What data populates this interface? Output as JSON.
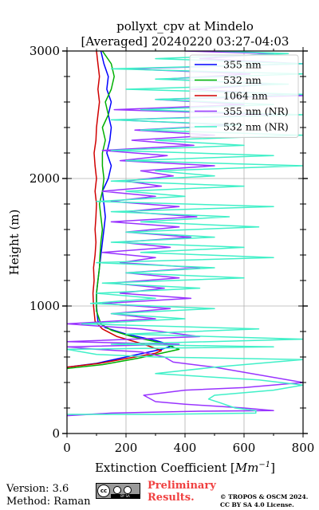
{
  "chart_data": {
    "type": "line",
    "title_line1": "pollyxt_cpv at Mindelo",
    "title_line2": "[Averaged] 20240220 03:27-04:03",
    "xlabel": "Extinction Coefficient [Mm⁻¹]",
    "xlabel_text": "Extinction Coefficient [",
    "xlabel_unit": "Mm",
    "xlabel_exp": "−1",
    "xlabel_close": "]",
    "ylabel": "Height (m)",
    "xlim": [
      0,
      800
    ],
    "ylim": [
      0,
      3000
    ],
    "xticks": [
      0,
      200,
      400,
      600,
      800
    ],
    "yticks": [
      0,
      1000,
      2000,
      3000
    ],
    "grid": true,
    "legend_position": "upper-right",
    "series": [
      {
        "name": "355 nm",
        "color": "#0000ff",
        "points": [
          [
            0,
            520
          ],
          [
            100,
            550
          ],
          [
            220,
            610
          ],
          [
            320,
            660
          ],
          [
            360,
            690
          ],
          [
            300,
            730
          ],
          [
            200,
            780
          ],
          [
            130,
            830
          ],
          [
            105,
            880
          ],
          [
            100,
            1000
          ],
          [
            100,
            1100
          ],
          [
            105,
            1200
          ],
          [
            110,
            1300
          ],
          [
            115,
            1400
          ],
          [
            120,
            1500
          ],
          [
            125,
            1600
          ],
          [
            130,
            1700
          ],
          [
            125,
            1800
          ],
          [
            120,
            1900
          ],
          [
            140,
            2000
          ],
          [
            150,
            2100
          ],
          [
            135,
            2200
          ],
          [
            145,
            2300
          ],
          [
            150,
            2400
          ],
          [
            140,
            2500
          ],
          [
            150,
            2600
          ],
          [
            135,
            2700
          ],
          [
            140,
            2800
          ],
          [
            125,
            2900
          ],
          [
            115,
            3000
          ]
        ]
      },
      {
        "name": "532 nm",
        "color": "#00b000",
        "points": [
          [
            0,
            510
          ],
          [
            120,
            540
          ],
          [
            240,
            590
          ],
          [
            340,
            640
          ],
          [
            380,
            660
          ],
          [
            320,
            710
          ],
          [
            220,
            760
          ],
          [
            150,
            810
          ],
          [
            115,
            860
          ],
          [
            100,
            960
          ],
          [
            100,
            1100
          ],
          [
            105,
            1200
          ],
          [
            110,
            1300
          ],
          [
            112,
            1400
          ],
          [
            115,
            1500
          ],
          [
            120,
            1600
          ],
          [
            115,
            1700
          ],
          [
            110,
            1800
          ],
          [
            120,
            1900
          ],
          [
            125,
            2000
          ],
          [
            120,
            2100
          ],
          [
            120,
            2200
          ],
          [
            130,
            2300
          ],
          [
            120,
            2400
          ],
          [
            140,
            2500
          ],
          [
            130,
            2600
          ],
          [
            150,
            2700
          ],
          [
            160,
            2800
          ],
          [
            150,
            2900
          ],
          [
            120,
            3000
          ]
        ]
      },
      {
        "name": "1064 nm",
        "color": "#d00000",
        "points": [
          [
            0,
            520
          ],
          [
            110,
            550
          ],
          [
            230,
            600
          ],
          [
            300,
            630
          ],
          [
            320,
            650
          ],
          [
            260,
            700
          ],
          [
            170,
            760
          ],
          [
            120,
            820
          ],
          [
            95,
            880
          ],
          [
            90,
            1000
          ],
          [
            88,
            1100
          ],
          [
            92,
            1200
          ],
          [
            90,
            1300
          ],
          [
            95,
            1400
          ],
          [
            98,
            1500
          ],
          [
            95,
            1600
          ],
          [
            98,
            1700
          ],
          [
            100,
            1800
          ],
          [
            95,
            1900
          ],
          [
            100,
            2000
          ],
          [
            95,
            2100
          ],
          [
            92,
            2200
          ],
          [
            98,
            2300
          ],
          [
            100,
            2400
          ],
          [
            105,
            2500
          ],
          [
            110,
            2600
          ],
          [
            105,
            2700
          ],
          [
            110,
            2800
          ],
          [
            105,
            2900
          ],
          [
            100,
            3000
          ]
        ]
      },
      {
        "name": "355 nm (NR)",
        "color": "#9933ff",
        "points": [
          [
            0,
            140
          ],
          [
            150,
            160
          ],
          [
            450,
            175
          ],
          [
            700,
            180
          ],
          [
            600,
            200
          ],
          [
            400,
            230
          ],
          [
            300,
            250
          ],
          [
            260,
            300
          ],
          [
            400,
            340
          ],
          [
            600,
            360
          ],
          [
            800,
            400
          ],
          [
            500,
            520
          ],
          [
            360,
            560
          ],
          [
            330,
            600
          ],
          [
            250,
            640
          ],
          [
            100,
            660
          ],
          [
            0,
            680
          ],
          [
            380,
            700
          ],
          [
            0,
            720
          ],
          [
            450,
            760
          ],
          [
            250,
            820
          ],
          [
            0,
            860
          ],
          [
            300,
            900
          ],
          [
            150,
            940
          ],
          [
            350,
            980
          ],
          [
            120,
            1020
          ],
          [
            420,
            1060
          ],
          [
            180,
            1100
          ],
          [
            330,
            1140
          ],
          [
            150,
            1180
          ],
          [
            380,
            1220
          ],
          [
            200,
            1260
          ],
          [
            450,
            1300
          ],
          [
            180,
            1340
          ],
          [
            300,
            1380
          ],
          [
            120,
            1420
          ],
          [
            350,
            1460
          ],
          [
            180,
            1500
          ],
          [
            420,
            1540
          ],
          [
            200,
            1580
          ],
          [
            380,
            1620
          ],
          [
            150,
            1660
          ],
          [
            440,
            1700
          ],
          [
            200,
            1740
          ],
          [
            380,
            1780
          ],
          [
            150,
            1820
          ],
          [
            300,
            1860
          ],
          [
            120,
            1900
          ],
          [
            320,
            1940
          ],
          [
            200,
            1980
          ],
          [
            360,
            2020
          ],
          [
            250,
            2060
          ],
          [
            500,
            2100
          ],
          [
            180,
            2140
          ],
          [
            340,
            2180
          ],
          [
            120,
            2220
          ],
          [
            430,
            2260
          ],
          [
            220,
            2300
          ],
          [
            500,
            2340
          ],
          [
            230,
            2380
          ],
          [
            560,
            2420
          ],
          [
            160,
            2460
          ],
          [
            700,
            2500
          ],
          [
            160,
            2540
          ],
          [
            600,
            2580
          ],
          [
            300,
            2620
          ],
          [
            800,
            2650
          ],
          [
            420,
            2700
          ],
          [
            700,
            2740
          ],
          [
            330,
            2780
          ],
          [
            620,
            2820
          ],
          [
            200,
            2860
          ],
          [
            800,
            2900
          ],
          [
            450,
            2940
          ],
          [
            700,
            2980
          ],
          [
            400,
            3000
          ]
        ]
      },
      {
        "name": "532 nm (NR)",
        "color": "#40f0c8",
        "points": [
          [
            0,
            150
          ],
          [
            300,
            150
          ],
          [
            640,
            160
          ],
          [
            640,
            180
          ],
          [
            570,
            200
          ],
          [
            520,
            240
          ],
          [
            480,
            270
          ],
          [
            500,
            300
          ],
          [
            700,
            340
          ],
          [
            800,
            380
          ],
          [
            650,
            420
          ],
          [
            300,
            470
          ],
          [
            500,
            520
          ],
          [
            700,
            560
          ],
          [
            800,
            580
          ],
          [
            300,
            600
          ],
          [
            100,
            620
          ],
          [
            0,
            660
          ],
          [
            700,
            680
          ],
          [
            150,
            700
          ],
          [
            800,
            740
          ],
          [
            200,
            780
          ],
          [
            650,
            820
          ],
          [
            50,
            860
          ],
          [
            400,
            900
          ],
          [
            150,
            940
          ],
          [
            500,
            980
          ],
          [
            80,
            1020
          ],
          [
            300,
            1060
          ],
          [
            100,
            1100
          ],
          [
            450,
            1140
          ],
          [
            120,
            1180
          ],
          [
            600,
            1220
          ],
          [
            200,
            1260
          ],
          [
            500,
            1300
          ],
          [
            100,
            1340
          ],
          [
            700,
            1380
          ],
          [
            250,
            1420
          ],
          [
            600,
            1460
          ],
          [
            150,
            1500
          ],
          [
            500,
            1540
          ],
          [
            200,
            1580
          ],
          [
            650,
            1620
          ],
          [
            250,
            1660
          ],
          [
            550,
            1700
          ],
          [
            150,
            1740
          ],
          [
            700,
            1780
          ],
          [
            100,
            1820
          ],
          [
            400,
            1860
          ],
          [
            200,
            1900
          ],
          [
            600,
            1940
          ],
          [
            150,
            1980
          ],
          [
            500,
            2020
          ],
          [
            300,
            2060
          ],
          [
            800,
            2100
          ],
          [
            200,
            2140
          ],
          [
            700,
            2180
          ],
          [
            150,
            2220
          ],
          [
            600,
            2260
          ],
          [
            300,
            2300
          ],
          [
            800,
            2340
          ],
          [
            250,
            2380
          ],
          [
            600,
            2420
          ],
          [
            150,
            2460
          ],
          [
            800,
            2500
          ],
          [
            250,
            2540
          ],
          [
            700,
            2580
          ],
          [
            300,
            2620
          ],
          [
            800,
            2660
          ],
          [
            200,
            2700
          ],
          [
            750,
            2740
          ],
          [
            300,
            2780
          ],
          [
            800,
            2820
          ],
          [
            150,
            2860
          ],
          [
            800,
            2900
          ],
          [
            300,
            2940
          ],
          [
            750,
            2980
          ],
          [
            500,
            3000
          ]
        ]
      }
    ]
  },
  "footer": {
    "version": "Version: 3.6",
    "method": "Method: Raman",
    "preliminary_line1": "Preliminary",
    "preliminary_line2": "Results.",
    "copyright_line1": "© TROPOS & OSCM 2024.",
    "copyright_line2": "CC BY SA 4.0 License.",
    "badge_text": "BY  SA",
    "badge_cc": "cc"
  }
}
